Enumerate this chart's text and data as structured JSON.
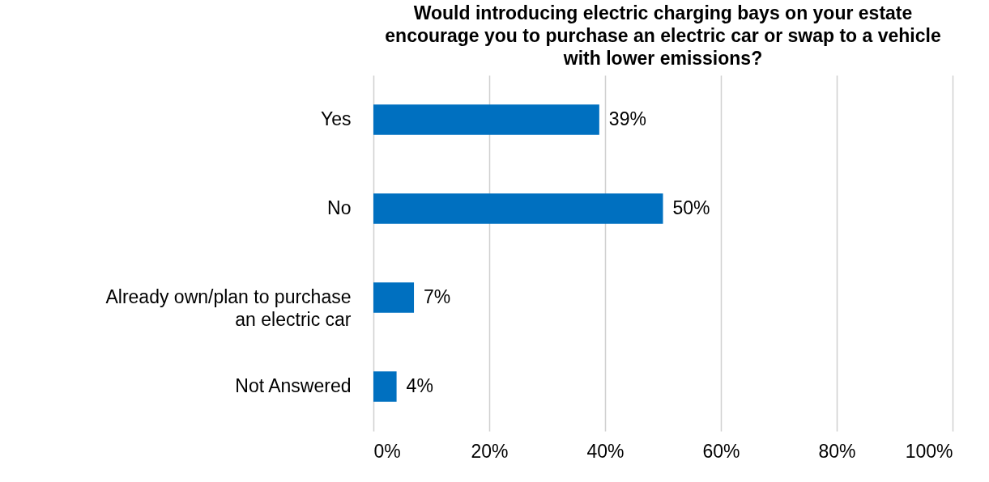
{
  "chart_data": {
    "type": "bar",
    "orientation": "horizontal",
    "title": "Would introducing electric charging bays on your estate encourage you to purchase an electric car or swap to a vehicle with lower emissions?",
    "categories": [
      "Yes",
      "No",
      "Already own/plan to purchase an electric car",
      "Not Answered"
    ],
    "values": [
      39,
      50,
      7,
      4
    ],
    "value_labels": [
      "39%",
      "50%",
      "7%",
      "4%"
    ],
    "color": "#0070c0",
    "xlim": [
      0,
      100
    ],
    "xticks": [
      {
        "value": 0,
        "label": "0%"
      },
      {
        "value": 20,
        "label": "20%"
      },
      {
        "value": 40,
        "label": "40%"
      },
      {
        "value": 60,
        "label": "60%"
      },
      {
        "value": 80,
        "label": "80%"
      },
      {
        "value": 100,
        "label": "100%"
      }
    ],
    "grid": "x"
  }
}
